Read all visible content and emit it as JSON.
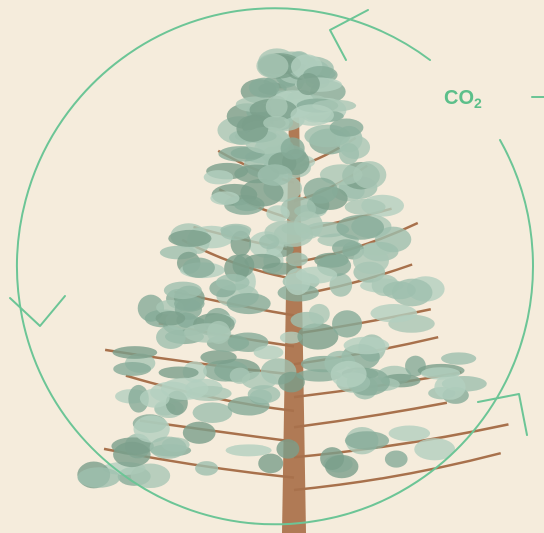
{
  "label": {
    "main": "CO",
    "subscript": "2"
  }
}
